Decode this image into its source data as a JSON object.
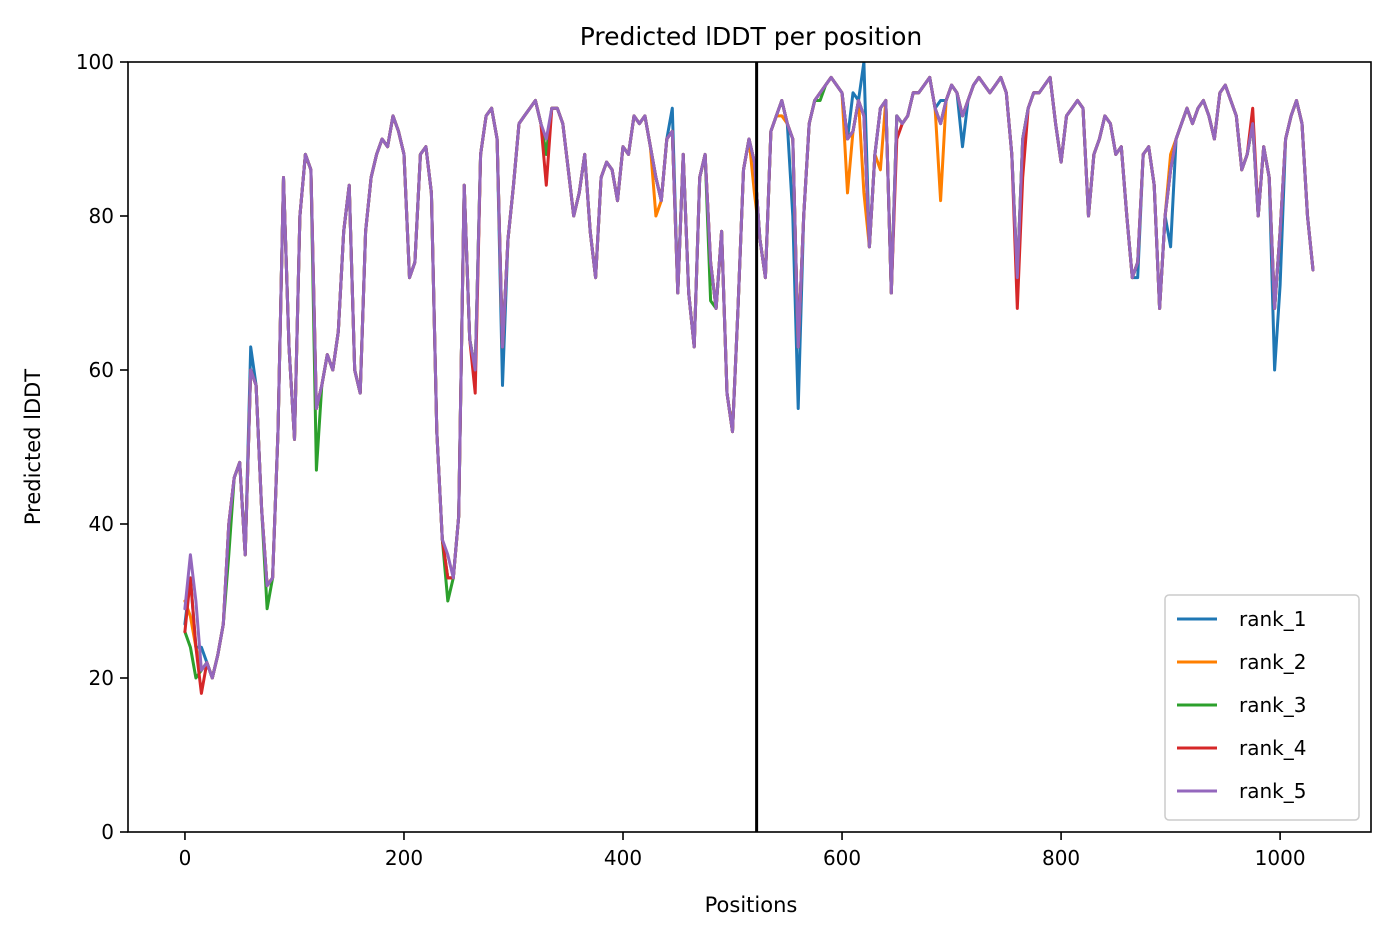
{
  "chart_data": {
    "type": "line",
    "title": "Predicted lDDT per position",
    "xlabel": "Positions",
    "ylabel": "Predicted lDDT",
    "xlim": [
      -52,
      1083
    ],
    "ylim": [
      0,
      100
    ],
    "xticks": [
      0,
      200,
      400,
      600,
      800,
      1000
    ],
    "yticks": [
      0,
      20,
      40,
      60,
      80,
      100
    ],
    "grid": false,
    "legend_position": "lower right",
    "vline_x": 522,
    "vline_color": "#000000",
    "x": [
      0,
      5,
      10,
      15,
      20,
      25,
      30,
      35,
      40,
      45,
      50,
      55,
      60,
      65,
      70,
      75,
      80,
      85,
      90,
      95,
      100,
      105,
      110,
      115,
      120,
      125,
      130,
      135,
      140,
      145,
      150,
      155,
      160,
      165,
      170,
      175,
      180,
      185,
      190,
      195,
      200,
      205,
      210,
      215,
      220,
      225,
      230,
      235,
      240,
      245,
      250,
      255,
      260,
      265,
      270,
      275,
      280,
      285,
      290,
      295,
      300,
      305,
      310,
      315,
      320,
      325,
      330,
      335,
      340,
      345,
      350,
      355,
      360,
      365,
      370,
      375,
      380,
      385,
      390,
      395,
      400,
      405,
      410,
      415,
      420,
      425,
      430,
      435,
      440,
      445,
      450,
      455,
      460,
      465,
      470,
      475,
      480,
      485,
      490,
      495,
      500,
      505,
      510,
      515,
      520,
      525,
      530,
      535,
      540,
      545,
      550,
      555,
      560,
      565,
      570,
      575,
      580,
      585,
      590,
      595,
      600,
      605,
      610,
      615,
      620,
      625,
      630,
      635,
      640,
      645,
      650,
      655,
      660,
      665,
      670,
      675,
      680,
      685,
      690,
      695,
      700,
      705,
      710,
      715,
      720,
      725,
      730,
      735,
      740,
      745,
      750,
      755,
      760,
      765,
      770,
      775,
      780,
      785,
      790,
      795,
      800,
      805,
      810,
      815,
      820,
      825,
      830,
      835,
      840,
      845,
      850,
      855,
      860,
      865,
      870,
      875,
      880,
      885,
      890,
      895,
      900,
      905,
      910,
      915,
      920,
      925,
      930,
      935,
      940,
      945,
      950,
      955,
      960,
      965,
      970,
      975,
      980,
      985,
      990,
      995,
      1000,
      1005,
      1010,
      1015,
      1020,
      1025,
      1030
    ],
    "base": [
      26,
      33,
      24,
      21,
      22,
      20,
      23,
      27,
      40,
      46,
      48,
      36,
      60,
      58,
      42,
      32,
      33,
      52,
      85,
      63,
      51,
      80,
      88,
      86,
      55,
      58,
      62,
      60,
      65,
      78,
      84,
      60,
      57,
      78,
      85,
      88,
      90,
      89,
      93,
      91,
      88,
      72,
      74,
      88,
      89,
      83,
      52,
      38,
      33,
      33,
      41,
      84,
      64,
      60,
      88,
      93,
      94,
      90,
      63,
      77,
      84,
      92,
      93,
      94,
      95,
      92,
      88,
      94,
      94,
      92,
      86,
      80,
      83,
      88,
      78,
      72,
      85,
      87,
      86,
      82,
      89,
      88,
      93,
      92,
      93,
      89,
      85,
      82,
      90,
      91,
      70,
      88,
      70,
      63,
      85,
      88,
      74,
      68,
      78,
      57,
      52,
      68,
      86,
      90,
      87,
      77,
      72,
      91,
      93,
      95,
      92,
      90,
      63,
      80,
      92,
      95,
      96,
      97,
      98,
      97,
      96,
      90,
      91,
      95,
      93,
      76,
      88,
      94,
      95,
      70,
      93,
      92,
      93,
      96,
      96,
      97,
      98,
      94,
      92,
      95,
      97,
      96,
      93,
      95,
      97,
      98,
      97,
      96,
      97,
      98,
      96,
      88,
      72,
      90,
      94,
      96,
      96,
      97,
      98,
      92,
      87,
      93,
      94,
      95,
      94,
      80,
      88,
      90,
      93,
      92,
      88,
      89,
      80,
      72,
      74,
      88,
      89,
      84,
      68,
      80,
      86,
      90,
      92,
      94,
      92,
      94,
      95,
      93,
      90,
      96,
      97,
      95,
      93,
      86,
      88,
      92,
      80,
      89,
      85,
      68,
      78,
      90,
      93,
      95,
      92,
      80,
      73
    ],
    "series": [
      {
        "name": "rank_1",
        "color": "#1f77b4",
        "offsets": [
          [
            0,
            1
          ],
          [
            15,
            3
          ],
          [
            60,
            3
          ],
          [
            290,
            -5
          ],
          [
            445,
            3
          ],
          [
            555,
            -10
          ],
          [
            560,
            -8
          ],
          [
            610,
            5
          ],
          [
            620,
            7
          ],
          [
            690,
            3
          ],
          [
            710,
            -4
          ],
          [
            870,
            -2
          ],
          [
            900,
            -10
          ],
          [
            995,
            -8
          ],
          [
            1000,
            -7
          ]
        ]
      },
      {
        "name": "rank_2",
        "color": "#ff7f00",
        "offsets": [
          [
            0,
            4
          ],
          [
            5,
            -5
          ],
          [
            430,
            -5
          ],
          [
            520,
            -4
          ],
          [
            545,
            -2
          ],
          [
            605,
            -7
          ],
          [
            620,
            -10
          ],
          [
            635,
            -8
          ],
          [
            690,
            -10
          ],
          [
            900,
            2
          ]
        ]
      },
      {
        "name": "rank_3",
        "color": "#2ca02c",
        "offsets": [
          [
            5,
            -9
          ],
          [
            10,
            -4
          ],
          [
            40,
            -4
          ],
          [
            75,
            -3
          ],
          [
            120,
            -8
          ],
          [
            240,
            -3
          ],
          [
            480,
            -5
          ],
          [
            580,
            -1
          ]
        ]
      },
      {
        "name": "rank_4",
        "color": "#d62728",
        "offsets": [
          [
            15,
            -3
          ],
          [
            265,
            -3
          ],
          [
            330,
            -4
          ],
          [
            650,
            -3
          ],
          [
            760,
            -4
          ],
          [
            765,
            -5
          ],
          [
            975,
            2
          ]
        ]
      },
      {
        "name": "rank_5",
        "color": "#9467bd",
        "offsets": [
          [
            0,
            3
          ],
          [
            5,
            3
          ],
          [
            10,
            6
          ],
          [
            240,
            3
          ],
          [
            330,
            2
          ]
        ]
      }
    ]
  }
}
